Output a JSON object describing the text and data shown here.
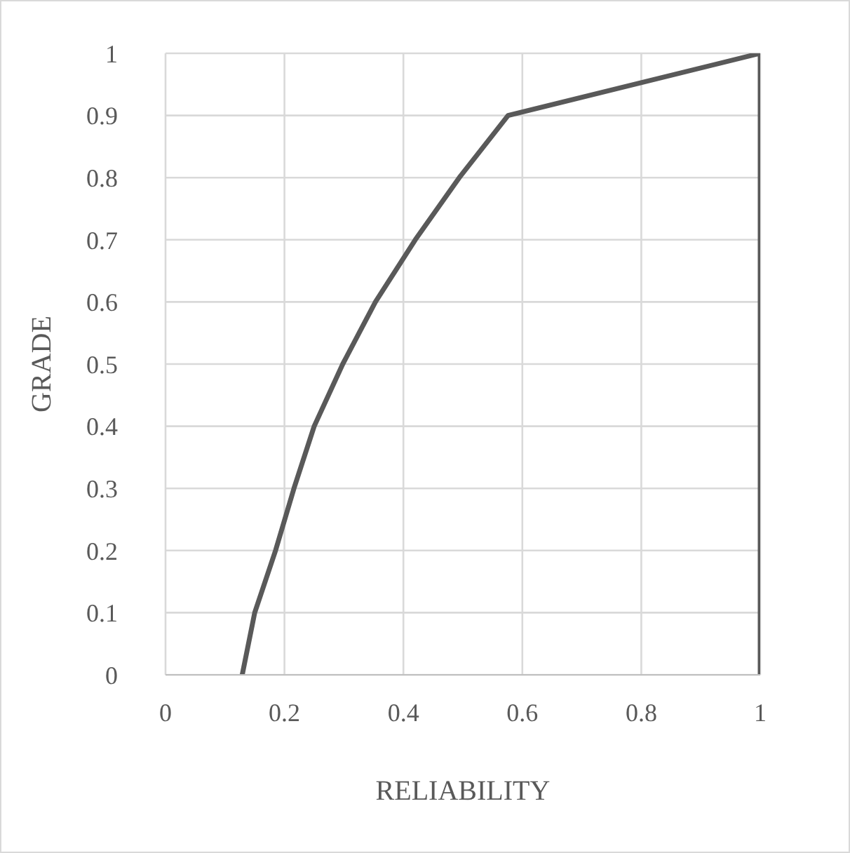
{
  "chart_data": {
    "type": "line",
    "xlabel": "RELIABILITY",
    "ylabel": "GRADE",
    "series": [
      {
        "color": "#595959",
        "x": [
          0.129,
          0.15,
          0.185,
          0.216,
          0.25,
          0.298,
          0.353,
          0.42,
          0.494,
          0.576,
          1,
          1
        ],
        "values": [
          0,
          0.1,
          0.2,
          0.3,
          0.4,
          0.5,
          0.6,
          0.7,
          0.8,
          0.9,
          1,
          0
        ]
      }
    ],
    "xlim": [
      0,
      1
    ],
    "xticks": [
      0,
      0.2,
      0.4,
      0.6,
      0.8,
      1
    ],
    "ylim": [
      0,
      1
    ],
    "yticks": [
      0,
      0.1,
      0.2,
      0.3,
      0.4,
      0.5,
      0.6,
      0.7,
      0.8,
      0.9,
      1
    ],
    "grid": true,
    "marker": "none",
    "line_style": "solid"
  }
}
